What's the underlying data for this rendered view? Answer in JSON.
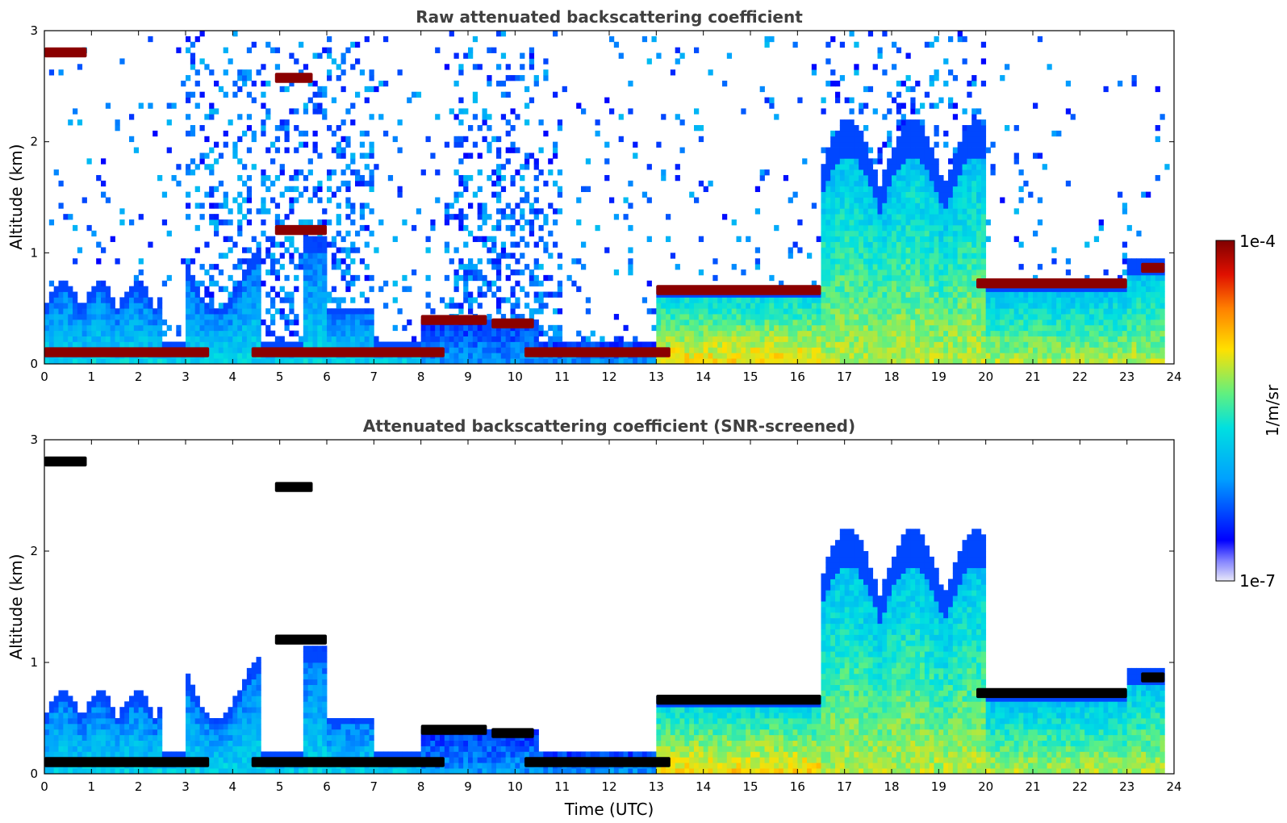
{
  "chart_data": [
    {
      "type": "heatmap",
      "title": "Raw attenuated backscattering coefficient",
      "xlabel": "",
      "ylabel": "Altitude (km)",
      "xlim": [
        0,
        24
      ],
      "ylim": [
        0,
        3
      ],
      "xticks": [
        "0",
        "1",
        "2",
        "3",
        "4",
        "5",
        "6",
        "7",
        "8",
        "9",
        "10",
        "11",
        "12",
        "13",
        "14",
        "15",
        "16",
        "17",
        "18",
        "19",
        "20",
        "21",
        "22",
        "23",
        "24"
      ],
      "yticks": [
        "0",
        "1",
        "2",
        "3"
      ],
      "screened": false,
      "layers": [
        {
          "t0": 0.0,
          "t1": 3.5,
          "alt": 0.1
        },
        {
          "t0": 4.4,
          "t1": 8.5,
          "alt": 0.1
        },
        {
          "t0": 10.2,
          "t1": 13.3,
          "alt": 0.1
        },
        {
          "t0": 13.0,
          "t1": 16.5,
          "alt": 0.66
        },
        {
          "t0": 19.8,
          "t1": 23.0,
          "alt": 0.72
        },
        {
          "t0": 23.3,
          "t1": 23.8,
          "alt": 0.86
        },
        {
          "t0": 0.0,
          "t1": 0.9,
          "alt": 2.8
        },
        {
          "t0": 4.9,
          "t1": 5.7,
          "alt": 2.57
        },
        {
          "t0": 4.9,
          "t1": 6.0,
          "alt": 1.2
        },
        {
          "t0": 8.0,
          "t1": 9.4,
          "alt": 0.39
        },
        {
          "t0": 9.5,
          "t1": 10.4,
          "alt": 0.36
        }
      ]
    },
    {
      "type": "heatmap",
      "title": "Attenuated backscattering coefficient (SNR-screened)",
      "xlabel": "Time (UTC)",
      "ylabel": "Altitude (km)",
      "xlim": [
        0,
        24
      ],
      "ylim": [
        0,
        3
      ],
      "xticks": [
        "0",
        "1",
        "2",
        "3",
        "4",
        "5",
        "6",
        "7",
        "8",
        "9",
        "10",
        "11",
        "12",
        "13",
        "14",
        "15",
        "16",
        "17",
        "18",
        "19",
        "20",
        "21",
        "22",
        "23",
        "24"
      ],
      "yticks": [
        "0",
        "1",
        "2",
        "3"
      ],
      "screened": true
    }
  ],
  "colorbar": {
    "label": "1/m/sr",
    "max_label": "1e-4",
    "min_label": "1e-7",
    "colormap": [
      "#e8e8f8",
      "#0000ff",
      "#00c8ff",
      "#40e0b0",
      "#ffe000",
      "#ff6000",
      "#c00000",
      "#800000"
    ]
  }
}
